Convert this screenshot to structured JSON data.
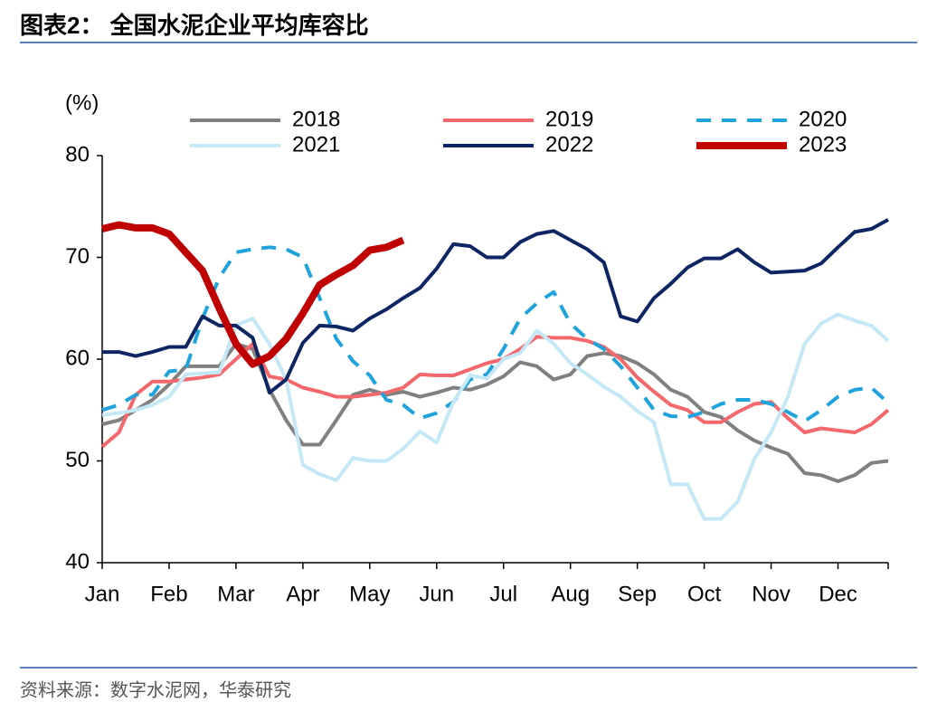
{
  "chart_data": {
    "type": "line",
    "title": "图表2： 全国水泥企业平均库容比",
    "y_label": "(%)",
    "source": "资料来源：数字水泥网，华泰研究",
    "categories": [
      "Jan",
      null,
      null,
      null,
      "Feb",
      null,
      null,
      null,
      "Mar",
      null,
      null,
      null,
      "Apr",
      null,
      null,
      null,
      "May",
      null,
      null,
      null,
      "Jun",
      null,
      null,
      null,
      "Jul",
      null,
      null,
      null,
      "Aug",
      null,
      null,
      null,
      "Sep",
      null,
      null,
      null,
      "Oct",
      null,
      null,
      null,
      "Nov",
      null,
      null,
      null,
      "Dec",
      null,
      null,
      null
    ],
    "ylim": [
      40,
      80
    ],
    "yticks": [
      40,
      50,
      60,
      70,
      80
    ],
    "grid": false,
    "legend": "top",
    "series": [
      {
        "name": "2018",
        "color": "#808080",
        "dash": false,
        "width": 4,
        "values": [
          53.6,
          54,
          55,
          56,
          57.5,
          59.3,
          59.3,
          59.3,
          61.5,
          61,
          57,
          54,
          51.6,
          51.6,
          54,
          56.5,
          57,
          56.5,
          56.8,
          56.3,
          56.7,
          57.2,
          57,
          57.5,
          58.3,
          59.7,
          59.3,
          58,
          58.5,
          60.3,
          60.6,
          60.3,
          59.6,
          58.5,
          57,
          56.3,
          54.8,
          54.3,
          53,
          52,
          51.3,
          50.7,
          48.8,
          48.6,
          48,
          48.6,
          49.8,
          50
        ]
      },
      {
        "name": "2019",
        "color": "#f4676a",
        "dash": false,
        "width": 4,
        "values": [
          51.4,
          52.8,
          56.5,
          57.8,
          57.8,
          58,
          58.2,
          58.5,
          60,
          61.5,
          58.3,
          58,
          57.2,
          56.8,
          56.3,
          56.3,
          56.5,
          56.7,
          57.2,
          58.5,
          58.4,
          58.4,
          59,
          59.6,
          60,
          61,
          62.2,
          62.1,
          62.1,
          61.8,
          61.2,
          60,
          58.2,
          56.8,
          55.5,
          55,
          53.8,
          53.8,
          54.8,
          55.6,
          55.8,
          54.2,
          52.8,
          53.2,
          53,
          52.8,
          53.6,
          55
        ]
      },
      {
        "name": "2020",
        "color": "#1fa3dd",
        "dash": true,
        "width": 4,
        "values": [
          55,
          55.5,
          56.5,
          56.5,
          58.8,
          59,
          64,
          68,
          70.5,
          70.8,
          71,
          70.8,
          70,
          66,
          62,
          59.8,
          58.4,
          56,
          55.5,
          54.2,
          54.7,
          55.8,
          58,
          58.5,
          61,
          64,
          65.5,
          66.6,
          63.5,
          62,
          61,
          59.3,
          57.2,
          55,
          54.4,
          54.3,
          54.8,
          55.6,
          56,
          56,
          55.6,
          54.8,
          53.9,
          55,
          56.3,
          57,
          57.2,
          55.7
        ]
      },
      {
        "name": "2021",
        "color": "#c5e8f7",
        "dash": false,
        "width": 4,
        "values": [
          54.5,
          54.7,
          55,
          55.5,
          56.3,
          58.5,
          58.6,
          58.7,
          63.3,
          64,
          61.5,
          58,
          49.6,
          48.7,
          48.1,
          50.3,
          50,
          50,
          51.2,
          52.9,
          51.8,
          55.8,
          58.4,
          58.1,
          60,
          60.6,
          62.8,
          61.5,
          59.6,
          58.5,
          57.3,
          56.3,
          54.9,
          53.8,
          47.7,
          47.7,
          44.3,
          44.3,
          46,
          50.2,
          52.8,
          56.3,
          61.5,
          63.5,
          64.4,
          63.8,
          63.3,
          61.8
        ]
      },
      {
        "name": "2022",
        "color": "#0d2663",
        "dash": false,
        "width": 4,
        "values": [
          60.7,
          60.7,
          60.3,
          60.7,
          61.2,
          61.2,
          64.2,
          63.3,
          63.3,
          62.1,
          56.7,
          58,
          61.6,
          63.3,
          63.2,
          62.8,
          64,
          64.9,
          66,
          67,
          68.9,
          71.3,
          71.1,
          70,
          70,
          71.5,
          72.3,
          72.6,
          71.7,
          70.8,
          69.5,
          64.2,
          63.7,
          66,
          67.4,
          69,
          69.9,
          69.9,
          70.8,
          69.5,
          68.5,
          68.6,
          68.7,
          69.4,
          71,
          72.5,
          72.8,
          73.7
        ]
      },
      {
        "name": "2023",
        "color": "#c00000",
        "dash": false,
        "width": 8,
        "values": [
          72.8,
          73.2,
          72.9,
          72.9,
          72.3,
          70.5,
          68.7,
          65,
          61.5,
          59.5,
          60.3,
          62,
          64.5,
          67.3,
          68.3,
          69.2,
          70.7,
          71,
          71.7,
          null,
          null,
          null,
          null,
          null,
          null,
          null,
          null,
          null,
          null,
          null,
          null,
          null,
          null,
          null,
          null,
          null,
          null,
          null,
          null,
          null,
          null,
          null,
          null,
          null,
          null,
          null,
          null,
          null
        ]
      }
    ]
  }
}
